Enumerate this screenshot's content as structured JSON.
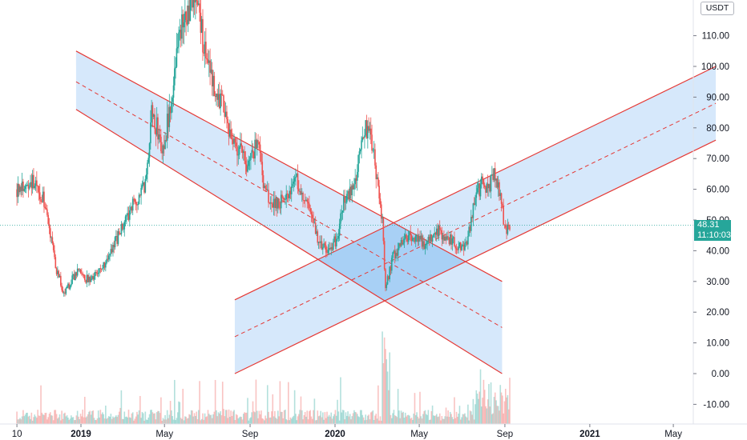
{
  "currency_label": "USDT",
  "last_price": "48.31",
  "countdown": "11:10:03",
  "colors": {
    "up": "#26a69a",
    "down": "#ef5350",
    "channel_line": "#e53935",
    "channel_fill": "#d2e6fb",
    "overlap_fill": "#a8d0f5",
    "last_price_line": "#26a69a"
  },
  "chart_data": {
    "type": "candlestick",
    "title": "",
    "xlabel": "",
    "ylabel": "",
    "ylim": [
      -15,
      120
    ],
    "y_ticks": [
      -10,
      0,
      10,
      20,
      30,
      40,
      50,
      60,
      70,
      80,
      90,
      100,
      110
    ],
    "y_tick_labels": [
      "-10.00",
      "0.00",
      "10.00",
      "20.00",
      "30.00",
      "40.00",
      "50.00",
      "60.00",
      "70.00",
      "80.00",
      "90.00",
      "100.00",
      "110.00"
    ],
    "x_tick_labels": [
      "10",
      "2019",
      "May",
      "Sep",
      "2020",
      "May",
      "Sep",
      "2021",
      "May"
    ],
    "x_tick_dates": [
      "2018-10-01",
      "2019-01-01",
      "2019-05-01",
      "2019-09-01",
      "2020-01-01",
      "2020-05-01",
      "2020-09-01",
      "2021-01-01",
      "2021-05-01"
    ],
    "grid": false,
    "last_price": 48.31,
    "series": [
      {
        "type": "candlestick",
        "points": [
          {
            "date": "2018-10-01",
            "price": 60
          },
          {
            "date": "2018-10-21",
            "price": 63
          },
          {
            "date": "2018-11-10",
            "price": 56
          },
          {
            "date": "2018-11-18",
            "price": 45
          },
          {
            "date": "2018-11-26",
            "price": 34
          },
          {
            "date": "2018-12-08",
            "price": 26
          },
          {
            "date": "2018-12-26",
            "price": 33
          },
          {
            "date": "2019-01-15",
            "price": 30
          },
          {
            "date": "2019-02-05",
            "price": 36
          },
          {
            "date": "2019-02-24",
            "price": 45
          },
          {
            "date": "2019-03-10",
            "price": 52
          },
          {
            "date": "2019-03-25",
            "price": 58
          },
          {
            "date": "2019-04-05",
            "price": 63
          },
          {
            "date": "2019-04-12",
            "price": 86
          },
          {
            "date": "2019-04-20",
            "price": 80
          },
          {
            "date": "2019-04-28",
            "price": 72
          },
          {
            "date": "2019-05-08",
            "price": 85
          },
          {
            "date": "2019-05-18",
            "price": 105
          },
          {
            "date": "2019-05-26",
            "price": 112
          },
          {
            "date": "2019-06-03",
            "price": 118
          },
          {
            "date": "2019-06-15",
            "price": 123
          },
          {
            "date": "2019-06-23",
            "price": 112
          },
          {
            "date": "2019-07-03",
            "price": 99
          },
          {
            "date": "2019-07-15",
            "price": 92
          },
          {
            "date": "2019-07-23",
            "price": 88
          },
          {
            "date": "2019-08-06",
            "price": 75
          },
          {
            "date": "2019-08-21",
            "price": 72
          },
          {
            "date": "2019-08-28",
            "price": 67
          },
          {
            "date": "2019-09-12",
            "price": 76
          },
          {
            "date": "2019-09-22",
            "price": 58
          },
          {
            "date": "2019-10-08",
            "price": 55
          },
          {
            "date": "2019-10-23",
            "price": 58
          },
          {
            "date": "2019-11-07",
            "price": 63
          },
          {
            "date": "2019-11-23",
            "price": 54
          },
          {
            "date": "2019-12-07",
            "price": 44
          },
          {
            "date": "2019-12-20",
            "price": 40
          },
          {
            "date": "2020-01-04",
            "price": 44
          },
          {
            "date": "2020-01-14",
            "price": 57
          },
          {
            "date": "2020-01-29",
            "price": 62
          },
          {
            "date": "2020-02-13",
            "price": 80
          },
          {
            "date": "2020-02-21",
            "price": 76
          },
          {
            "date": "2020-03-01",
            "price": 65
          },
          {
            "date": "2020-03-09",
            "price": 50
          },
          {
            "date": "2020-03-13",
            "price": 27
          },
          {
            "date": "2020-03-24",
            "price": 38
          },
          {
            "date": "2020-04-07",
            "price": 43
          },
          {
            "date": "2020-04-22",
            "price": 45
          },
          {
            "date": "2020-05-10",
            "price": 42
          },
          {
            "date": "2020-05-25",
            "price": 47
          },
          {
            "date": "2020-06-11",
            "price": 44
          },
          {
            "date": "2020-06-24",
            "price": 42
          },
          {
            "date": "2020-07-07",
            "price": 42
          },
          {
            "date": "2020-07-22",
            "price": 58
          },
          {
            "date": "2020-07-30",
            "price": 62
          },
          {
            "date": "2020-08-10",
            "price": 60
          },
          {
            "date": "2020-08-17",
            "price": 66
          },
          {
            "date": "2020-08-25",
            "price": 58
          },
          {
            "date": "2020-09-01",
            "price": 47
          },
          {
            "date": "2020-09-08",
            "price": 48.31
          }
        ]
      }
    ],
    "volume": {
      "note": "volume bars along bottom, colored by candle direction",
      "scale": "relative"
    },
    "annotations": [
      {
        "type": "parallel_channel",
        "name": "descending channel",
        "start": {
          "date": "2018-12-25",
          "upper": 105,
          "middle": 95,
          "lower": 86
        },
        "end": {
          "date": "2020-08-28",
          "upper": 30,
          "middle": 15,
          "lower": 0
        }
      },
      {
        "type": "parallel_channel",
        "name": "ascending channel",
        "start": {
          "date": "2019-08-10",
          "upper": 24,
          "middle": 12,
          "lower": 0
        },
        "end": {
          "date": "2021-07-01",
          "upper": 100,
          "middle": 88,
          "lower": 76
        }
      }
    ]
  }
}
